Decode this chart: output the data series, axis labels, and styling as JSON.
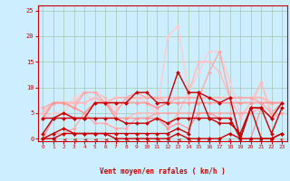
{
  "title": "",
  "xlabel": "Vent moyen/en rafales ( km/h )",
  "background_color": "#cceeff",
  "grid_color": "#aaccbb",
  "x_ticks": [
    0,
    1,
    2,
    3,
    4,
    5,
    6,
    7,
    8,
    9,
    10,
    11,
    12,
    13,
    14,
    15,
    16,
    17,
    18,
    19,
    20,
    21,
    22,
    23
  ],
  "y_ticks": [
    0,
    5,
    10,
    15,
    20,
    25
  ],
  "ylim": [
    -0.5,
    26
  ],
  "xlim": [
    -0.5,
    23.5
  ],
  "lines": [
    {
      "y": [
        4,
        5,
        5,
        8,
        9,
        7,
        7,
        6,
        7,
        8,
        7,
        5,
        20,
        22,
        9,
        13,
        17,
        17,
        11,
        5,
        6,
        11,
        4,
        5
      ],
      "color": "#ffcccc",
      "lw": 1.0,
      "marker": "D",
      "ms": 2.0
    },
    {
      "y": [
        4,
        7,
        7,
        7,
        9,
        9,
        8,
        4,
        4,
        5,
        5,
        5,
        2,
        5,
        9,
        15,
        15,
        13,
        8,
        4,
        7,
        11,
        5,
        7
      ],
      "color": "#ffbbbb",
      "lw": 1.0,
      "marker": "D",
      "ms": 2.0
    },
    {
      "y": [
        5,
        7,
        7,
        7,
        7,
        8,
        7,
        8,
        8,
        8,
        8,
        8,
        8,
        8,
        8,
        8,
        8,
        8,
        8,
        8,
        8,
        8,
        7,
        7
      ],
      "color": "#ffbbbb",
      "lw": 1.5,
      "marker": "D",
      "ms": 2.0
    },
    {
      "y": [
        6,
        7,
        7,
        6,
        9,
        9,
        7,
        5,
        8,
        9,
        8,
        8,
        7,
        8,
        8,
        8,
        13,
        17,
        8,
        8,
        8,
        7,
        5,
        7
      ],
      "color": "#ffaaaa",
      "lw": 1.0,
      "marker": "D",
      "ms": 2.0
    },
    {
      "y": [
        0,
        1,
        1,
        2,
        5,
        3,
        3,
        2,
        2,
        4,
        4,
        5,
        5,
        5,
        5,
        5,
        5,
        5,
        5,
        5,
        5,
        6,
        4,
        5
      ],
      "color": "#ffaaaa",
      "lw": 1.0,
      "marker": "D",
      "ms": 2.0
    },
    {
      "y": [
        4,
        7,
        7,
        6,
        5,
        7,
        7,
        7,
        7,
        7,
        7,
        6,
        7,
        7,
        7,
        7,
        7,
        7,
        7,
        7,
        7,
        7,
        7,
        7
      ],
      "color": "#ff9999",
      "lw": 1.2,
      "marker": "D",
      "ms": 2.0
    },
    {
      "y": [
        0,
        4,
        5,
        4,
        4,
        7,
        7,
        4,
        4,
        4,
        4,
        4,
        2,
        3,
        2,
        5,
        5,
        4,
        4,
        0,
        0,
        6,
        4,
        7
      ],
      "color": "#ff9999",
      "lw": 1.0,
      "marker": "D",
      "ms": 2.0
    },
    {
      "y": [
        4,
        4,
        5,
        4,
        4,
        7,
        7,
        7,
        7,
        9,
        9,
        7,
        7,
        13,
        9,
        9,
        8,
        7,
        8,
        0,
        6,
        6,
        4,
        7
      ],
      "color": "#cc0000",
      "lw": 1.0,
      "marker": "D",
      "ms": 2.0
    },
    {
      "y": [
        1,
        4,
        4,
        4,
        4,
        4,
        4,
        4,
        3,
        3,
        3,
        4,
        3,
        4,
        4,
        4,
        4,
        3,
        3,
        1,
        6,
        6,
        1,
        6
      ],
      "color": "#cc0000",
      "lw": 1.0,
      "marker": "D",
      "ms": 2.0
    },
    {
      "y": [
        0,
        1,
        2,
        1,
        1,
        1,
        1,
        1,
        1,
        1,
        1,
        1,
        1,
        2,
        1,
        9,
        4,
        4,
        4,
        0,
        6,
        0,
        0,
        1
      ],
      "color": "#cc0000",
      "lw": 1.0,
      "marker": "D",
      "ms": 2.0
    },
    {
      "y": [
        0,
        0,
        1,
        1,
        1,
        1,
        1,
        0,
        0,
        0,
        0,
        0,
        0,
        1,
        0,
        0,
        0,
        0,
        1,
        0,
        0,
        0,
        0,
        1
      ],
      "color": "#cc0000",
      "lw": 1.0,
      "marker": "D",
      "ms": 2.0
    }
  ],
  "arrow_angles": [
    225,
    270,
    270,
    270,
    270,
    270,
    270,
    270,
    270,
    270,
    270,
    270,
    270,
    270,
    270,
    315,
    315,
    45,
    45,
    45,
    315,
    315,
    315,
    225
  ]
}
